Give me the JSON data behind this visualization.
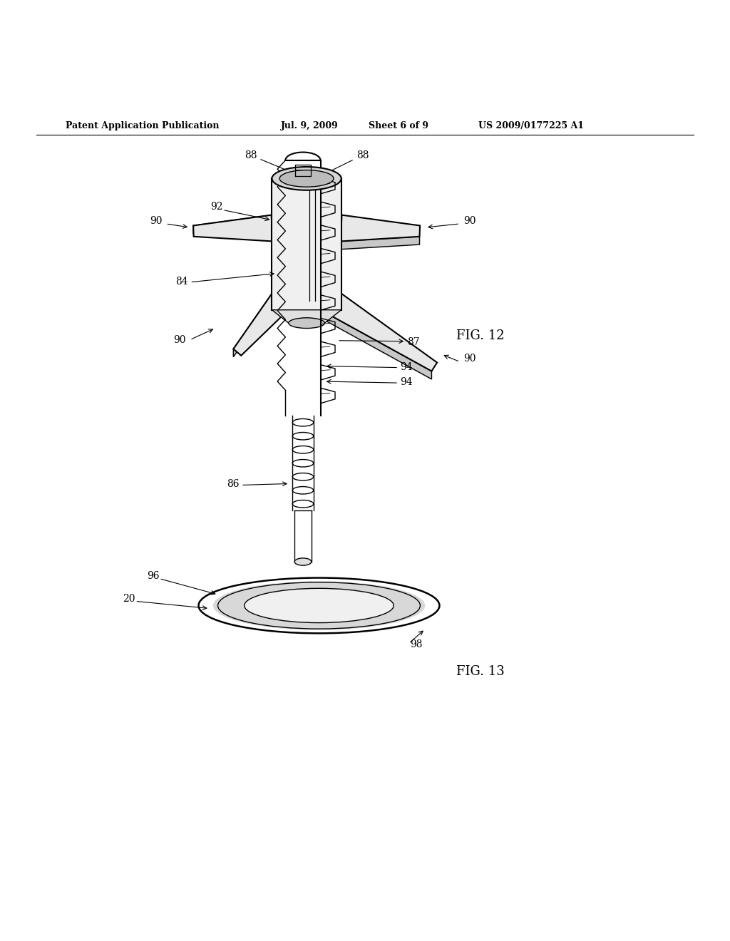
{
  "bg_color": "#ffffff",
  "line_color": "#000000",
  "header_text": "Patent Application Publication",
  "header_date": "Jul. 9, 2009",
  "header_sheet": "Sheet 6 of 9",
  "header_patent": "US 2009/0177225 A1",
  "fig12_label": "FIG. 12",
  "fig13_label": "FIG. 13"
}
